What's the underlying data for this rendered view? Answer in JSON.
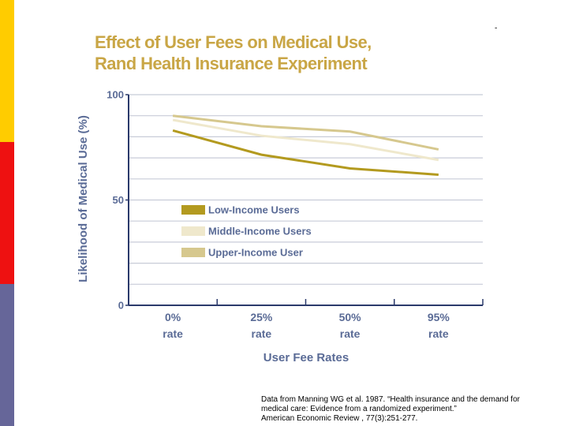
{
  "page_marker": "-",
  "chart_data": {
    "type": "line",
    "title": "Effect of User Fees on Medical Use,\nRand Health Insurance Experiment",
    "ylabel": "Likelihood of Medical Use (%)",
    "xlabel": "User Fee Rates",
    "categories": [
      "0%\nrate",
      "25%\nrate",
      "50%\nrate",
      "95%\nrate"
    ],
    "series": [
      {
        "name": "Low-Income Users",
        "color": "#b39a1f",
        "values": [
          83,
          71.5,
          65,
          62
        ]
      },
      {
        "name": "Middle-Income Users",
        "color": "#efe8cc",
        "values": [
          88,
          80.5,
          76.5,
          69
        ]
      },
      {
        "name": "Upper-Income User",
        "color": "#d6c88e",
        "values": [
          90,
          85,
          82.5,
          74
        ]
      }
    ],
    "ylim": [
      0,
      100
    ],
    "yticks": [
      0,
      50,
      100
    ],
    "grid_lines": [
      10,
      20,
      30,
      40,
      50,
      60,
      70,
      80,
      90,
      100
    ],
    "legend_position": "left"
  },
  "source": "Data from Manning WG et al. 1987. “Health insurance and the demand for\nmedical care: Evidence from a randomized experiment.”\nAmerican Economic Review , 77(3):251-277."
}
